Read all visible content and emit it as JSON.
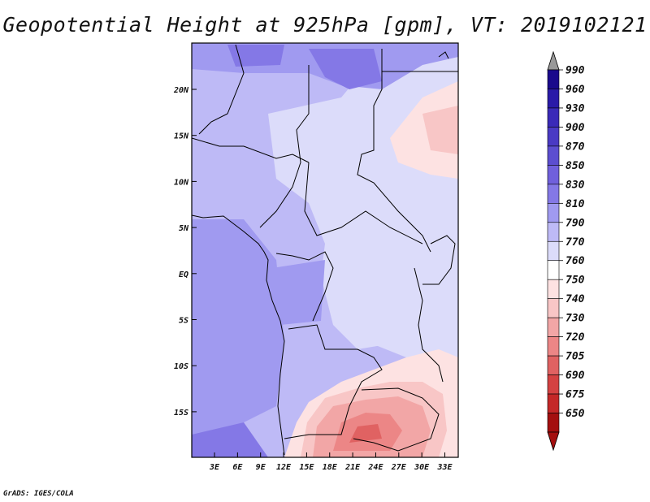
{
  "title": "Geopotential Height at 925hPa [gpm], VT: 2019102121",
  "credit": "GrADS: IGES/COLA",
  "map": {
    "lon_ticks": [
      "3E",
      "6E",
      "9E",
      "12E",
      "15E",
      "18E",
      "21E",
      "24E",
      "27E",
      "30E",
      "33E"
    ],
    "lat_ticks": [
      "20N",
      "15N",
      "10N",
      "5N",
      "EQ",
      "5S",
      "10S",
      "15S"
    ]
  },
  "colorbar": {
    "levels": [
      "990",
      "960",
      "930",
      "900",
      "870",
      "850",
      "830",
      "810",
      "790",
      "770",
      "760",
      "750",
      "740",
      "730",
      "720",
      "705",
      "690",
      "675",
      "650"
    ],
    "colors": [
      "#1a0a8c",
      "#2a1aa8",
      "#3a2ab8",
      "#4a3ac4",
      "#5c4ed0",
      "#7060dc",
      "#8478e6",
      "#a09af0",
      "#bebaf6",
      "#dcdcfa",
      "#ffffff",
      "#fde2e2",
      "#f8c6c6",
      "#f2a6a6",
      "#ec8686",
      "#e06262",
      "#d44242",
      "#c42828",
      "#a41010"
    ]
  }
}
